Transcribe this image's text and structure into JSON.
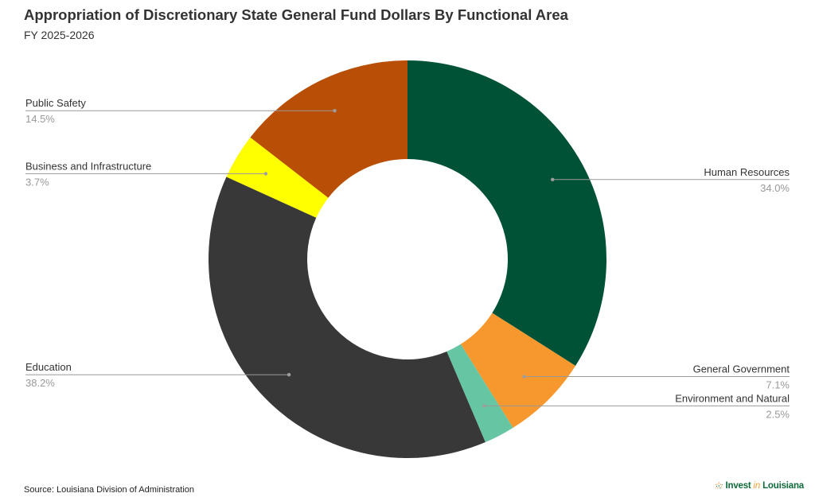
{
  "title": "Appropriation of Discretionary State General Fund Dollars By Functional Area",
  "subtitle": "FY 2025-2026",
  "source": "Source: Louisiana Division of Administration",
  "logo": {
    "text_main": "Invest",
    "text_accent": "in",
    "text_tail": "Louisiana",
    "icon": "sunburst-dots-icon"
  },
  "chart_data": {
    "type": "pie",
    "donut": true,
    "slices": [
      {
        "label": "Human Resources",
        "value": 34.0,
        "value_label": "34.0%",
        "color": "#005236",
        "label_side": "right"
      },
      {
        "label": "General Government",
        "value": 7.1,
        "value_label": "7.1%",
        "color": "#f7982f",
        "label_side": "right"
      },
      {
        "label": "Environment and Natural",
        "value": 2.5,
        "value_label": "2.5%",
        "color": "#66c5a3",
        "label_side": "right"
      },
      {
        "label": "Education",
        "value": 38.2,
        "value_label": "38.2%",
        "color": "#383838",
        "label_side": "left"
      },
      {
        "label": "Business and Infrastructure",
        "value": 3.7,
        "value_label": "3.7%",
        "color": "#ffff00",
        "label_side": "left"
      },
      {
        "label": "Public Safety",
        "value": 14.5,
        "value_label": "14.5%",
        "color": "#b94e06",
        "label_side": "left"
      }
    ],
    "start_angle": "12 o'clock",
    "direction": "clockwise",
    "legend": "none"
  }
}
